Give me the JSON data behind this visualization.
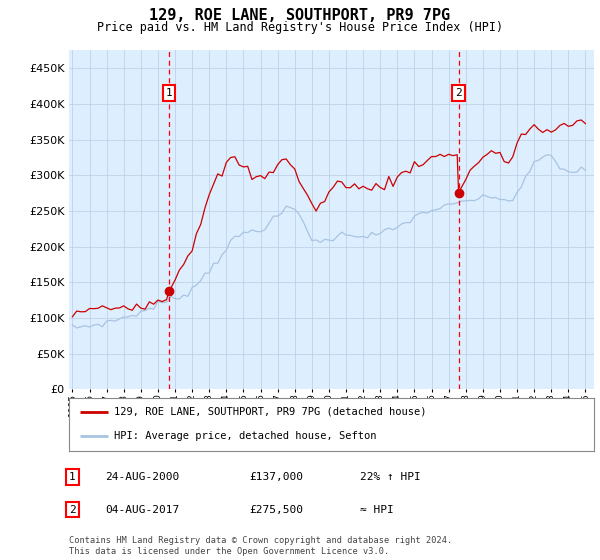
{
  "title": "129, ROE LANE, SOUTHPORT, PR9 7PG",
  "subtitle": "Price paid vs. HM Land Registry's House Price Index (HPI)",
  "ylabel_values": [
    0,
    50000,
    100000,
    150000,
    200000,
    250000,
    300000,
    350000,
    400000,
    450000
  ],
  "ylim": [
    0,
    475000
  ],
  "xlim_start": 1994.8,
  "xlim_end": 2025.5,
  "sale1_date": 2000.65,
  "sale1_price": 137000,
  "sale2_date": 2017.58,
  "sale2_price": 275500,
  "hpi_color": "#a8c4e0",
  "price_color": "#cc0000",
  "bg_color": "#ddeeff",
  "grid_color": "#b8cce4",
  "legend_label_price": "129, ROE LANE, SOUTHPORT, PR9 7PG (detached house)",
  "legend_label_hpi": "HPI: Average price, detached house, Sefton",
  "annotation1_date": "24-AUG-2000",
  "annotation1_price": "£137,000",
  "annotation1_hpi": "22% ↑ HPI",
  "annotation2_date": "04-AUG-2017",
  "annotation2_price": "£275,500",
  "annotation2_hpi": "≈ HPI",
  "footer": "Contains HM Land Registry data © Crown copyright and database right 2024.\nThis data is licensed under the Open Government Licence v3.0.",
  "hpi_x": [
    1995.0,
    1995.25,
    1995.5,
    1995.75,
    1996.0,
    1996.25,
    1996.5,
    1996.75,
    1997.0,
    1997.25,
    1997.5,
    1997.75,
    1998.0,
    1998.25,
    1998.5,
    1998.75,
    1999.0,
    1999.25,
    1999.5,
    1999.75,
    2000.0,
    2000.25,
    2000.5,
    2000.75,
    2001.0,
    2001.25,
    2001.5,
    2001.75,
    2002.0,
    2002.25,
    2002.5,
    2002.75,
    2003.0,
    2003.25,
    2003.5,
    2003.75,
    2004.0,
    2004.25,
    2004.5,
    2004.75,
    2005.0,
    2005.25,
    2005.5,
    2005.75,
    2006.0,
    2006.25,
    2006.5,
    2006.75,
    2007.0,
    2007.25,
    2007.5,
    2007.75,
    2008.0,
    2008.25,
    2008.5,
    2008.75,
    2009.0,
    2009.25,
    2009.5,
    2009.75,
    2010.0,
    2010.25,
    2010.5,
    2010.75,
    2011.0,
    2011.25,
    2011.5,
    2011.75,
    2012.0,
    2012.25,
    2012.5,
    2012.75,
    2013.0,
    2013.25,
    2013.5,
    2013.75,
    2014.0,
    2014.25,
    2014.5,
    2014.75,
    2015.0,
    2015.25,
    2015.5,
    2015.75,
    2016.0,
    2016.25,
    2016.5,
    2016.75,
    2017.0,
    2017.25,
    2017.5,
    2017.75,
    2018.0,
    2018.25,
    2018.5,
    2018.75,
    2019.0,
    2019.25,
    2019.5,
    2019.75,
    2020.0,
    2020.25,
    2020.5,
    2020.75,
    2021.0,
    2021.25,
    2021.5,
    2021.75,
    2022.0,
    2022.25,
    2022.5,
    2022.75,
    2023.0,
    2023.25,
    2023.5,
    2023.75,
    2024.0,
    2024.25,
    2024.5,
    2024.75,
    2025.0
  ],
  "hpi_y": [
    86000,
    87000,
    87500,
    88000,
    89000,
    90000,
    91000,
    92000,
    93000,
    95000,
    97000,
    99000,
    100000,
    102000,
    104000,
    106000,
    108000,
    110000,
    113000,
    116000,
    119000,
    121000,
    123000,
    125000,
    127000,
    130000,
    133000,
    136000,
    140000,
    147000,
    154000,
    160000,
    167000,
    175000,
    182000,
    190000,
    198000,
    205000,
    210000,
    215000,
    218000,
    220000,
    222000,
    223000,
    225000,
    228000,
    232000,
    237000,
    242000,
    248000,
    252000,
    254000,
    252000,
    245000,
    235000,
    222000,
    212000,
    208000,
    206000,
    207000,
    210000,
    213000,
    215000,
    216000,
    217000,
    218000,
    217000,
    216000,
    215000,
    215000,
    216000,
    217000,
    218000,
    220000,
    222000,
    224000,
    226000,
    230000,
    234000,
    238000,
    241000,
    244000,
    247000,
    249000,
    251000,
    253000,
    254000,
    255000,
    256000,
    258000,
    260000,
    262000,
    264000,
    265000,
    266000,
    267000,
    267000,
    268000,
    269000,
    270000,
    268000,
    265000,
    263000,
    268000,
    275000,
    285000,
    295000,
    305000,
    315000,
    322000,
    326000,
    328000,
    325000,
    318000,
    312000,
    308000,
    305000,
    305000,
    306000,
    307000,
    308000
  ],
  "price_x": [
    1995.0,
    1995.25,
    1995.5,
    1995.75,
    1996.0,
    1996.25,
    1996.5,
    1996.75,
    1997.0,
    1997.25,
    1997.5,
    1997.75,
    1998.0,
    1998.25,
    1998.5,
    1998.75,
    1999.0,
    1999.25,
    1999.5,
    1999.75,
    2000.0,
    2000.25,
    2000.5,
    2000.65,
    2001.0,
    2001.25,
    2001.5,
    2001.75,
    2002.0,
    2002.25,
    2002.5,
    2002.75,
    2003.0,
    2003.25,
    2003.5,
    2003.75,
    2004.0,
    2004.25,
    2004.5,
    2004.75,
    2005.0,
    2005.25,
    2005.5,
    2005.75,
    2006.0,
    2006.25,
    2006.5,
    2006.75,
    2007.0,
    2007.25,
    2007.5,
    2007.75,
    2008.0,
    2008.25,
    2008.5,
    2008.75,
    2009.0,
    2009.25,
    2009.5,
    2009.75,
    2010.0,
    2010.25,
    2010.5,
    2010.75,
    2011.0,
    2011.25,
    2011.5,
    2011.75,
    2012.0,
    2012.25,
    2012.5,
    2012.75,
    2013.0,
    2013.25,
    2013.5,
    2013.75,
    2014.0,
    2014.25,
    2014.5,
    2014.75,
    2015.0,
    2015.25,
    2015.5,
    2015.75,
    2016.0,
    2016.25,
    2016.5,
    2016.75,
    2017.0,
    2017.25,
    2017.5,
    2017.58,
    2018.0,
    2018.25,
    2018.5,
    2018.75,
    2019.0,
    2019.25,
    2019.5,
    2019.75,
    2020.0,
    2020.25,
    2020.5,
    2020.75,
    2021.0,
    2021.25,
    2021.5,
    2021.75,
    2022.0,
    2022.25,
    2022.5,
    2022.75,
    2023.0,
    2023.25,
    2023.5,
    2023.75,
    2024.0,
    2024.25,
    2024.5,
    2024.75,
    2025.0
  ],
  "price_y": [
    105000,
    107000,
    108000,
    109000,
    110000,
    111000,
    112000,
    113000,
    113000,
    114000,
    115000,
    116000,
    116000,
    117000,
    118000,
    119000,
    119000,
    120000,
    121000,
    122000,
    123000,
    125000,
    130000,
    137000,
    155000,
    168000,
    178000,
    188000,
    200000,
    218000,
    238000,
    255000,
    270000,
    283000,
    295000,
    305000,
    315000,
    320000,
    322000,
    318000,
    310000,
    305000,
    300000,
    296000,
    295000,
    298000,
    302000,
    308000,
    318000,
    325000,
    322000,
    315000,
    305000,
    295000,
    282000,
    268000,
    258000,
    255000,
    258000,
    265000,
    275000,
    282000,
    287000,
    290000,
    290000,
    288000,
    285000,
    282000,
    280000,
    280000,
    282000,
    284000,
    286000,
    288000,
    290000,
    292000,
    295000,
    300000,
    305000,
    310000,
    315000,
    318000,
    320000,
    322000,
    323000,
    325000,
    326000,
    328000,
    330000,
    332000,
    330000,
    275500,
    295000,
    305000,
    315000,
    320000,
    325000,
    330000,
    332000,
    330000,
    325000,
    320000,
    318000,
    330000,
    345000,
    355000,
    360000,
    365000,
    368000,
    365000,
    362000,
    360000,
    360000,
    362000,
    365000,
    368000,
    370000,
    372000,
    375000,
    378000,
    380000
  ]
}
